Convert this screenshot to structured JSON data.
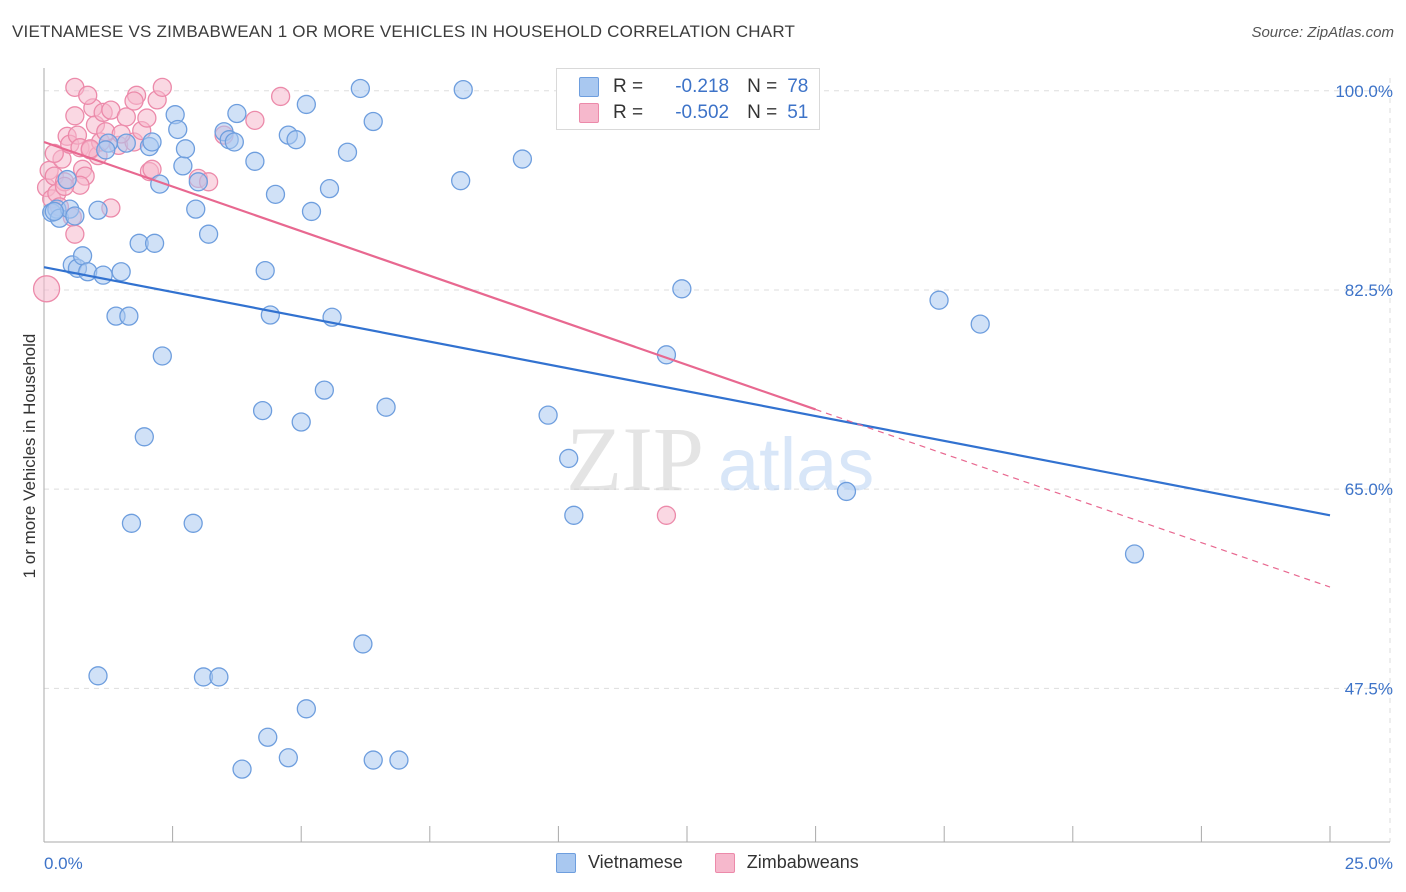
{
  "title": "VIETNAMESE VS ZIMBABWEAN 1 OR MORE VEHICLES IN HOUSEHOLD CORRELATION CHART",
  "source": "Source: ZipAtlas.com",
  "watermark": {
    "zip": "ZIP",
    "atlas": "atlas"
  },
  "colors": {
    "vietnamese_fill": "#a9c8f0",
    "vietnamese_stroke": "#6e9ede",
    "vietnamese_line": "#3272d0",
    "zimbabwean_fill": "#f6b8cc",
    "zimbabwean_stroke": "#ec8aaa",
    "zimbabwean_line": "#e86890",
    "tick_text": "#3d73c8",
    "grid": "#dddddd"
  },
  "legend": {
    "rows": [
      {
        "r_label": "R =",
        "r_value": "-0.218",
        "n_label": "N =",
        "n_value": "78"
      },
      {
        "r_label": "R =",
        "r_value": "-0.502",
        "n_label": "N =",
        "n_value": "51"
      }
    ]
  },
  "bottom_legend": {
    "items": [
      "Vietnamese",
      "Zimbabweans"
    ]
  },
  "chart_data": {
    "type": "scatter",
    "title": "VIETNAMESE VS ZIMBABWEAN 1 OR MORE VEHICLES IN HOUSEHOLD CORRELATION CHART",
    "xlabel": "",
    "ylabel": "1 or more Vehicles in Household",
    "xlim": [
      0,
      25
    ],
    "ylim": [
      34,
      102
    ],
    "x_tick_labels": [
      "0.0%",
      "25.0%"
    ],
    "y_ticks": [
      47.5,
      65.0,
      82.5,
      100.0
    ],
    "y_tick_labels": [
      "47.5%",
      "65.0%",
      "82.5%",
      "100.0%"
    ],
    "grid": true,
    "series": [
      {
        "name": "Vietnamese",
        "r": -0.218,
        "n": 78,
        "trend": {
          "x0": 0,
          "y0": 84.5,
          "x1": 25,
          "y1": 62.7
        },
        "points": [
          [
            0.15,
            89.3
          ],
          [
            0.25,
            89.6
          ],
          [
            0.3,
            88.8
          ],
          [
            0.45,
            92.2
          ],
          [
            0.5,
            89.6
          ],
          [
            0.55,
            84.7
          ],
          [
            0.65,
            84.4
          ],
          [
            0.75,
            85.5
          ],
          [
            0.85,
            84.1
          ],
          [
            1.05,
            89.5
          ],
          [
            1.15,
            83.8
          ],
          [
            1.25,
            95.4
          ],
          [
            1.4,
            80.2
          ],
          [
            1.5,
            84.1
          ],
          [
            1.6,
            95.4
          ],
          [
            1.65,
            80.2
          ],
          [
            1.85,
            86.6
          ],
          [
            1.95,
            69.6
          ],
          [
            2.05,
            95.1
          ],
          [
            2.1,
            95.5
          ],
          [
            2.15,
            86.6
          ],
          [
            2.25,
            91.8
          ],
          [
            2.3,
            76.7
          ],
          [
            2.55,
            97.9
          ],
          [
            2.6,
            96.6
          ],
          [
            2.7,
            93.4
          ],
          [
            2.75,
            94.9
          ],
          [
            2.95,
            89.6
          ],
          [
            3.0,
            92.0
          ],
          [
            3.2,
            87.4
          ],
          [
            3.5,
            96.4
          ],
          [
            3.6,
            95.7
          ],
          [
            3.7,
            95.5
          ],
          [
            3.75,
            98.0
          ],
          [
            4.1,
            93.8
          ],
          [
            4.25,
            71.9
          ],
          [
            4.3,
            84.2
          ],
          [
            4.4,
            80.3
          ],
          [
            4.5,
            90.9
          ],
          [
            4.75,
            96.1
          ],
          [
            4.9,
            95.7
          ],
          [
            5.1,
            98.8
          ],
          [
            5.2,
            89.4
          ],
          [
            5.0,
            70.9
          ],
          [
            5.55,
            91.4
          ],
          [
            5.6,
            80.1
          ],
          [
            5.45,
            73.7
          ],
          [
            5.9,
            94.6
          ],
          [
            6.15,
            100.2
          ],
          [
            6.4,
            97.3
          ],
          [
            6.65,
            72.2
          ],
          [
            8.1,
            92.1
          ],
          [
            8.15,
            100.1
          ],
          [
            9.3,
            94.0
          ],
          [
            9.8,
            71.5
          ],
          [
            10.2,
            67.7
          ],
          [
            10.3,
            62.7
          ],
          [
            12.1,
            76.8
          ],
          [
            12.4,
            82.6
          ],
          [
            15.6,
            64.8
          ],
          [
            17.4,
            81.6
          ],
          [
            18.2,
            79.5
          ],
          [
            21.2,
            59.3
          ],
          [
            1.7,
            62.0
          ],
          [
            2.9,
            62.0
          ],
          [
            1.05,
            48.6
          ],
          [
            3.1,
            48.5
          ],
          [
            3.4,
            48.5
          ],
          [
            6.2,
            51.4
          ],
          [
            5.1,
            45.7
          ],
          [
            4.35,
            43.2
          ],
          [
            4.75,
            41.4
          ],
          [
            3.85,
            40.4
          ],
          [
            6.4,
            41.2
          ],
          [
            6.9,
            41.2
          ],
          [
            0.2,
            89.4
          ],
          [
            0.6,
            89.0
          ],
          [
            1.2,
            94.8
          ]
        ]
      },
      {
        "name": "Zimbabweans",
        "r": -0.502,
        "n": 51,
        "trend": {
          "x0": 0,
          "y0": 95.5,
          "x1": 15,
          "y1": 72.0
        },
        "trend_extension": {
          "x0": 15,
          "y0": 72.0,
          "x1": 25,
          "y1": 56.4
        },
        "points": [
          [
            0.05,
            91.5
          ],
          [
            0.1,
            93.0
          ],
          [
            0.15,
            90.5
          ],
          [
            0.2,
            92.5
          ],
          [
            0.25,
            91.0
          ],
          [
            0.3,
            89.8
          ],
          [
            0.35,
            94.0
          ],
          [
            0.4,
            92.0
          ],
          [
            0.45,
            96.0
          ],
          [
            0.5,
            95.3
          ],
          [
            0.55,
            88.9
          ],
          [
            0.6,
            87.4
          ],
          [
            0.65,
            96.1
          ],
          [
            0.7,
            95.0
          ],
          [
            0.75,
            93.1
          ],
          [
            0.8,
            92.5
          ],
          [
            0.9,
            94.8
          ],
          [
            0.95,
            98.5
          ],
          [
            1.0,
            97.0
          ],
          [
            1.05,
            94.3
          ],
          [
            1.1,
            95.5
          ],
          [
            1.15,
            98.1
          ],
          [
            1.2,
            96.4
          ],
          [
            1.3,
            98.3
          ],
          [
            1.45,
            95.2
          ],
          [
            1.6,
            97.7
          ],
          [
            1.75,
            95.5
          ],
          [
            1.8,
            99.6
          ],
          [
            1.9,
            96.5
          ],
          [
            2.0,
            97.6
          ],
          [
            2.05,
            92.9
          ],
          [
            2.1,
            93.1
          ],
          [
            2.2,
            99.2
          ],
          [
            2.3,
            100.3
          ],
          [
            3.0,
            92.3
          ],
          [
            3.2,
            92.0
          ],
          [
            3.5,
            96.1
          ],
          [
            4.1,
            97.4
          ],
          [
            4.6,
            99.5
          ],
          [
            0.6,
            100.3
          ],
          [
            0.85,
            99.6
          ],
          [
            1.3,
            89.7
          ],
          [
            0.7,
            91.7
          ],
          [
            0.9,
            94.9
          ],
          [
            1.5,
            96.2
          ],
          [
            1.75,
            99.1
          ],
          [
            0.2,
            94.5
          ],
          [
            0.4,
            91.6
          ],
          [
            0.6,
            97.8
          ],
          [
            12.1,
            62.7
          ],
          [
            0.05,
            82.6
          ]
        ]
      }
    ]
  }
}
